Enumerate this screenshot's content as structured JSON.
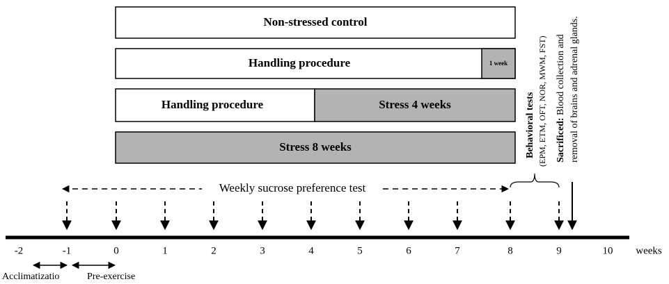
{
  "boxes": [
    {
      "label": "Non-stressed control"
    },
    {
      "label": "Handling procedure",
      "note": "1 week"
    },
    {
      "left": "Handling procedure",
      "right": "Stress 4 weeks"
    },
    {
      "label": "Stress 8 weeks"
    }
  ],
  "behavioral": {
    "title": "Behavioral tests",
    "tests": "(EPM, ETM, OFT, NOR, MWM, FST)"
  },
  "sacrificed": {
    "title": "Sacrificed:",
    "line1": "Blood collection and",
    "line2": "removal of brains and adrenal glands."
  },
  "sucrose_test": "Weekly sucrose preference test",
  "timeline": {
    "ticks": [
      "-2",
      "-1",
      "0",
      "1",
      "2",
      "3",
      "4",
      "5",
      "6",
      "7",
      "8",
      "9",
      "10"
    ],
    "unit": "weeks"
  },
  "phases": {
    "acclimatization": "Acclimatizatio",
    "pre_exercise": "Pre-exercise"
  }
}
